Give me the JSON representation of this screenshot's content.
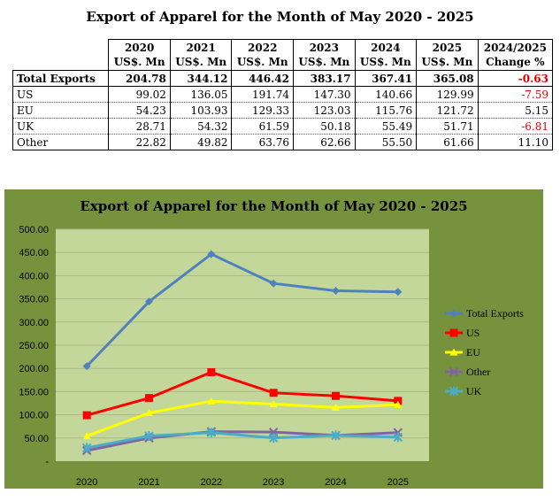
{
  "title": "Export of Apparel for the Month of May 2020 - 2025",
  "table": {
    "columns": [
      {
        "year": "2020",
        "unit": "US$. Mn"
      },
      {
        "year": "2021",
        "unit": "US$. Mn"
      },
      {
        "year": "2022",
        "unit": "US$. Mn"
      },
      {
        "year": "2023",
        "unit": "US$. Mn"
      },
      {
        "year": "2024",
        "unit": "US$. Mn"
      },
      {
        "year": "2025",
        "unit": "US$. Mn"
      },
      {
        "year": "2024/2025",
        "unit": "Change %"
      }
    ],
    "rows": [
      {
        "label": "Total Exports",
        "values": [
          "204.78",
          "344.12",
          "446.42",
          "383.17",
          "367.41",
          "365.08",
          "-0.63"
        ]
      },
      {
        "label": "US",
        "values": [
          "99.02",
          "136.05",
          "191.74",
          "147.30",
          "140.66",
          "129.99",
          "-7.59"
        ]
      },
      {
        "label": "EU",
        "values": [
          "54.23",
          "103.93",
          "129.33",
          "123.03",
          "115.76",
          "121.72",
          "5.15"
        ]
      },
      {
        "label": "UK",
        "values": [
          "28.71",
          "54.32",
          "61.59",
          "50.18",
          "55.49",
          "51.71",
          "-6.81"
        ]
      },
      {
        "label": "Other",
        "values": [
          "22.82",
          "49.82",
          "63.76",
          "62.66",
          "55.50",
          "61.66",
          "11.10"
        ]
      }
    ]
  },
  "chart_data": {
    "type": "line",
    "title": "Export of Apparel for the Month of May 2020 - 2025",
    "categories": [
      "2020",
      "2021",
      "2022",
      "2023",
      "2024",
      "2025"
    ],
    "ylim": [
      0,
      500
    ],
    "ytick_labels": [
      "-",
      "50.00",
      "100.00",
      "150.00",
      "200.00",
      "250.00",
      "300.00",
      "350.00",
      "400.00",
      "450.00",
      "500.00"
    ],
    "grid": true,
    "legend_position": "right",
    "series": [
      {
        "name": "Total Exports",
        "values": [
          204.78,
          344.12,
          446.42,
          383.17,
          367.41,
          365.08
        ],
        "color": "#4f81bd",
        "marker": "diamond"
      },
      {
        "name": "US",
        "values": [
          99.02,
          136.05,
          191.74,
          147.3,
          140.66,
          129.99
        ],
        "color": "#ff0000",
        "marker": "square"
      },
      {
        "name": "EU",
        "values": [
          54.23,
          103.93,
          129.33,
          123.03,
          115.76,
          121.72
        ],
        "color": "#ffff00",
        "marker": "triangle"
      },
      {
        "name": "Other",
        "values": [
          22.82,
          49.82,
          63.76,
          62.66,
          55.5,
          61.66
        ],
        "color": "#8064a2",
        "marker": "x"
      },
      {
        "name": "UK",
        "values": [
          28.71,
          54.32,
          61.59,
          50.18,
          55.49,
          51.71
        ],
        "color": "#4bacc6",
        "marker": "star"
      }
    ],
    "background": "#76923c",
    "plot_background": "#c4d79b"
  }
}
